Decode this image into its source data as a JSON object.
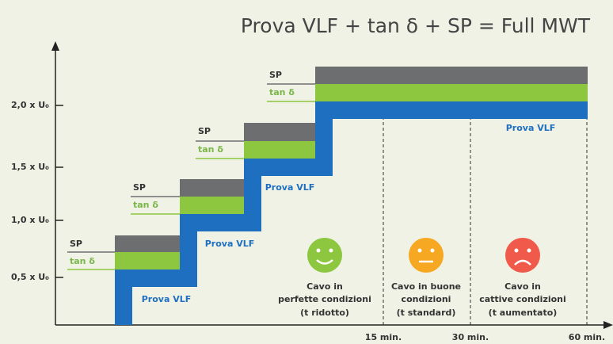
{
  "title": "Prova VLF + tan δ + SP = Full MWT",
  "y_labels": [
    "2,0 x U₀",
    "1,5 x U₀",
    "1,0 x U₀",
    "0,5 x U₀"
  ],
  "steps": [
    {
      "sp": "SP",
      "tan": "tan δ",
      "vlf": "Prova VLF"
    },
    {
      "sp": "SP",
      "tan": "tan δ",
      "vlf": "Prova VLF"
    },
    {
      "sp": "SP",
      "tan": "tan δ",
      "vlf": "Prova VLF"
    },
    {
      "sp": "SP",
      "tan": "tan δ",
      "vlf": "Prova VLF"
    }
  ],
  "x_labels": [
    "15 min.",
    "30 min.",
    "60 min."
  ],
  "outcomes": [
    {
      "lines": [
        "Cavo in",
        "perfette condizioni",
        "(t ridotto)"
      ]
    },
    {
      "lines": [
        "Cavo in buone",
        "condizioni",
        "(t standard)"
      ]
    },
    {
      "lines": [
        "Cavo in",
        "cattive condizioni",
        "(t aumentato)"
      ]
    }
  ]
}
